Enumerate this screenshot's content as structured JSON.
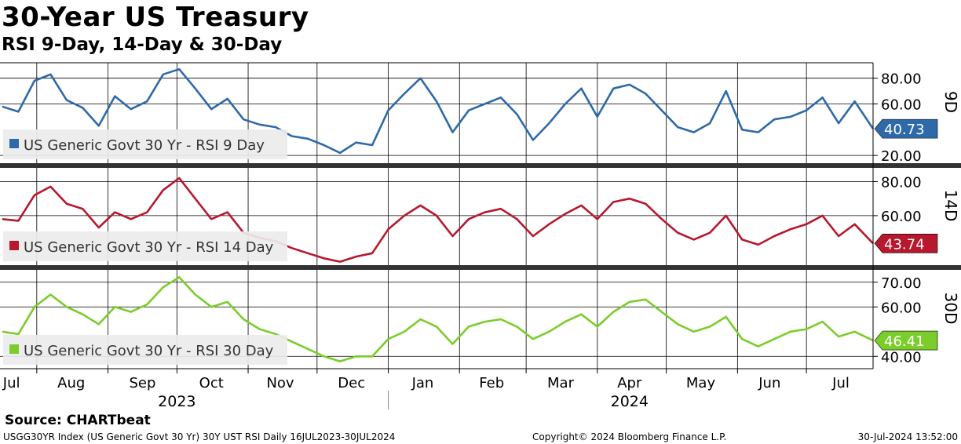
{
  "header": {
    "title": "30-Year US Treasury",
    "subtitle": "RSI 9-Day, 14-Day & 30-Day"
  },
  "footer": {
    "source": "Source: CHARTbeat",
    "index_info": "USGG30YR Index (US Generic Govt 30 Yr) 30Y UST RSI  Daily 16JUL2023-30JUL2024",
    "copyright": "Copyright© 2024 Bloomberg Finance L.P.",
    "timestamp": "30-Jul-2024 13:52:00"
  },
  "chart_data": [
    {
      "type": "line",
      "panel_label": "9D",
      "legend": "US Generic Govt 30 Yr - RSI 9 Day",
      "color": "#2e6aa8",
      "ylim": [
        14,
        92
      ],
      "y_ticks": [
        "80.00",
        "60.00",
        "20.00"
      ],
      "y_tick_values": [
        80,
        60,
        20
      ],
      "last_value": "40.73",
      "x_range": [
        "2023-07-16",
        "2024-07-30"
      ],
      "x": [
        "2023-07-17",
        "2023-07-24",
        "2023-07-31",
        "2023-08-07",
        "2023-08-14",
        "2023-08-21",
        "2023-08-28",
        "2023-09-04",
        "2023-09-11",
        "2023-09-18",
        "2023-09-25",
        "2023-10-02",
        "2023-10-09",
        "2023-10-16",
        "2023-10-23",
        "2023-10-30",
        "2023-11-06",
        "2023-11-13",
        "2023-11-20",
        "2023-11-27",
        "2023-12-04",
        "2023-12-11",
        "2023-12-18",
        "2023-12-25",
        "2024-01-01",
        "2024-01-08",
        "2024-01-15",
        "2024-01-22",
        "2024-01-29",
        "2024-02-05",
        "2024-02-12",
        "2024-02-19",
        "2024-02-26",
        "2024-03-04",
        "2024-03-11",
        "2024-03-18",
        "2024-03-25",
        "2024-04-01",
        "2024-04-08",
        "2024-04-15",
        "2024-04-22",
        "2024-04-29",
        "2024-05-06",
        "2024-05-13",
        "2024-05-20",
        "2024-05-27",
        "2024-06-03",
        "2024-06-10",
        "2024-06-17",
        "2024-06-24",
        "2024-07-01",
        "2024-07-08",
        "2024-07-15",
        "2024-07-22",
        "2024-07-30"
      ],
      "values": [
        58,
        54,
        78,
        83,
        63,
        57,
        43,
        66,
        56,
        62,
        83,
        87,
        72,
        56,
        64,
        48,
        44,
        42,
        35,
        33,
        28,
        22,
        30,
        28,
        55,
        68,
        80,
        62,
        38,
        55,
        60,
        65,
        52,
        32,
        45,
        60,
        72,
        50,
        72,
        75,
        68,
        55,
        42,
        38,
        45,
        70,
        40,
        38,
        48,
        50,
        55,
        65,
        45,
        62,
        40.73
      ]
    },
    {
      "type": "line",
      "panel_label": "14D",
      "legend": "US Generic Govt 30 Yr - RSI 14 Day",
      "color": "#b8182d",
      "ylim": [
        31,
        88
      ],
      "y_ticks": [
        "80.00",
        "60.00"
      ],
      "y_tick_values": [
        80,
        60
      ],
      "last_value": "43.74",
      "x_range": [
        "2023-07-16",
        "2024-07-30"
      ],
      "x": [
        "2023-07-17",
        "2023-07-24",
        "2023-07-31",
        "2023-08-07",
        "2023-08-14",
        "2023-08-21",
        "2023-08-28",
        "2023-09-04",
        "2023-09-11",
        "2023-09-18",
        "2023-09-25",
        "2023-10-02",
        "2023-10-09",
        "2023-10-16",
        "2023-10-23",
        "2023-10-30",
        "2023-11-06",
        "2023-11-13",
        "2023-11-20",
        "2023-11-27",
        "2023-12-04",
        "2023-12-11",
        "2023-12-18",
        "2023-12-25",
        "2024-01-01",
        "2024-01-08",
        "2024-01-15",
        "2024-01-22",
        "2024-01-29",
        "2024-02-05",
        "2024-02-12",
        "2024-02-19",
        "2024-02-26",
        "2024-03-04",
        "2024-03-11",
        "2024-03-18",
        "2024-03-25",
        "2024-04-01",
        "2024-04-08",
        "2024-04-15",
        "2024-04-22",
        "2024-04-29",
        "2024-05-06",
        "2024-05-13",
        "2024-05-20",
        "2024-05-27",
        "2024-06-03",
        "2024-06-10",
        "2024-06-17",
        "2024-06-24",
        "2024-07-01",
        "2024-07-08",
        "2024-07-15",
        "2024-07-22",
        "2024-07-30"
      ],
      "values": [
        58,
        57,
        72,
        77,
        67,
        64,
        53,
        62,
        58,
        62,
        75,
        82,
        70,
        58,
        62,
        50,
        47,
        45,
        41,
        38,
        35,
        33,
        36,
        38,
        52,
        60,
        66,
        60,
        48,
        58,
        62,
        64,
        58,
        48,
        55,
        61,
        66,
        58,
        68,
        70,
        67,
        58,
        50,
        46,
        50,
        60,
        46,
        43,
        48,
        52,
        55,
        60,
        48,
        55,
        43.74
      ]
    },
    {
      "type": "line",
      "panel_label": "30D",
      "legend": "US Generic Govt 30 Yr - RSI 30 Day",
      "color": "#7acd2a",
      "ylim": [
        35,
        75
      ],
      "y_ticks": [
        "70.00",
        "60.00",
        "40.00"
      ],
      "y_tick_values": [
        70,
        60,
        40
      ],
      "last_value": "46.41",
      "x_range": [
        "2023-07-16",
        "2024-07-30"
      ],
      "x": [
        "2023-07-17",
        "2023-07-24",
        "2023-07-31",
        "2023-08-07",
        "2023-08-14",
        "2023-08-21",
        "2023-08-28",
        "2023-09-04",
        "2023-09-11",
        "2023-09-18",
        "2023-09-25",
        "2023-10-02",
        "2023-10-09",
        "2023-10-16",
        "2023-10-23",
        "2023-10-30",
        "2023-11-06",
        "2023-11-13",
        "2023-11-20",
        "2023-11-27",
        "2023-12-04",
        "2023-12-11",
        "2023-12-18",
        "2023-12-25",
        "2024-01-01",
        "2024-01-08",
        "2024-01-15",
        "2024-01-22",
        "2024-01-29",
        "2024-02-05",
        "2024-02-12",
        "2024-02-19",
        "2024-02-26",
        "2024-03-04",
        "2024-03-11",
        "2024-03-18",
        "2024-03-25",
        "2024-04-01",
        "2024-04-08",
        "2024-04-15",
        "2024-04-22",
        "2024-04-29",
        "2024-05-06",
        "2024-05-13",
        "2024-05-20",
        "2024-05-27",
        "2024-06-03",
        "2024-06-10",
        "2024-06-17",
        "2024-06-24",
        "2024-07-01",
        "2024-07-08",
        "2024-07-15",
        "2024-07-22",
        "2024-07-30"
      ],
      "values": [
        50,
        49,
        60,
        65,
        60,
        57,
        53,
        60,
        58,
        61,
        68,
        72,
        65,
        60,
        62,
        55,
        51,
        49,
        46,
        43,
        40,
        38,
        40,
        40,
        47,
        50,
        55,
        52,
        45,
        52,
        54,
        55,
        52,
        47,
        50,
        54,
        57,
        52,
        58,
        62,
        63,
        58,
        53,
        50,
        52,
        56,
        47,
        44,
        47,
        50,
        51,
        54,
        48,
        50,
        46.41
      ]
    }
  ],
  "x_axis": {
    "months": [
      {
        "label": "Jul",
        "date": "2023-07-21"
      },
      {
        "label": "Aug",
        "date": "2023-08-16"
      },
      {
        "label": "Sep",
        "date": "2023-09-16"
      },
      {
        "label": "Oct",
        "date": "2023-10-16"
      },
      {
        "label": "Nov",
        "date": "2023-11-15"
      },
      {
        "label": "Dec",
        "date": "2023-12-16"
      },
      {
        "label": "Jan",
        "date": "2024-01-16"
      },
      {
        "label": "Feb",
        "date": "2024-02-15"
      },
      {
        "label": "Mar",
        "date": "2024-03-16"
      },
      {
        "label": "Apr",
        "date": "2024-04-15"
      },
      {
        "label": "May",
        "date": "2024-05-16"
      },
      {
        "label": "Jun",
        "date": "2024-06-15"
      },
      {
        "label": "Jul",
        "date": "2024-07-16"
      }
    ],
    "gridlines": [
      "2023-08-01",
      "2023-09-01",
      "2023-10-01",
      "2023-11-01",
      "2023-12-01",
      "2024-01-01",
      "2024-02-01",
      "2024-03-01",
      "2024-04-01",
      "2024-05-01",
      "2024-06-01",
      "2024-07-01"
    ],
    "years": [
      {
        "label": "2023",
        "date": "2023-10-01"
      },
      {
        "label": "2024",
        "date": "2024-04-15"
      }
    ]
  }
}
